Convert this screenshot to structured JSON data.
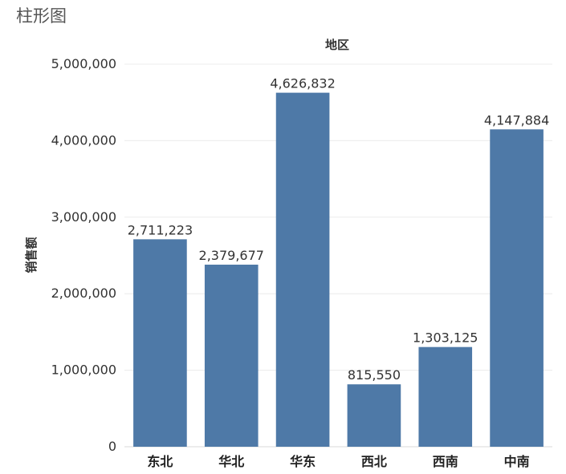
{
  "chart_data": {
    "type": "bar",
    "sheet_title": "柱形图",
    "title": "",
    "header_label": "地区",
    "xlabel": "",
    "ylabel": "销售额",
    "categories": [
      "东北",
      "华北",
      "华东",
      "西北",
      "西南",
      "中南"
    ],
    "values": [
      2711223,
      2379677,
      4626832,
      815550,
      1303125,
      4147884
    ],
    "value_labels": [
      "2,711,223",
      "2,379,677",
      "4,626,832",
      "815,550",
      "1,303,125",
      "4,147,884"
    ],
    "ylim": [
      0,
      5000000
    ],
    "yticks": [
      0,
      1000000,
      2000000,
      3000000,
      4000000,
      5000000
    ],
    "ytick_labels": [
      "0",
      "1,000,000",
      "2,000,000",
      "3,000,000",
      "4,000,000",
      "5,000,000"
    ],
    "grid": true,
    "legend": "none",
    "bar_color": "#4e79a7"
  }
}
